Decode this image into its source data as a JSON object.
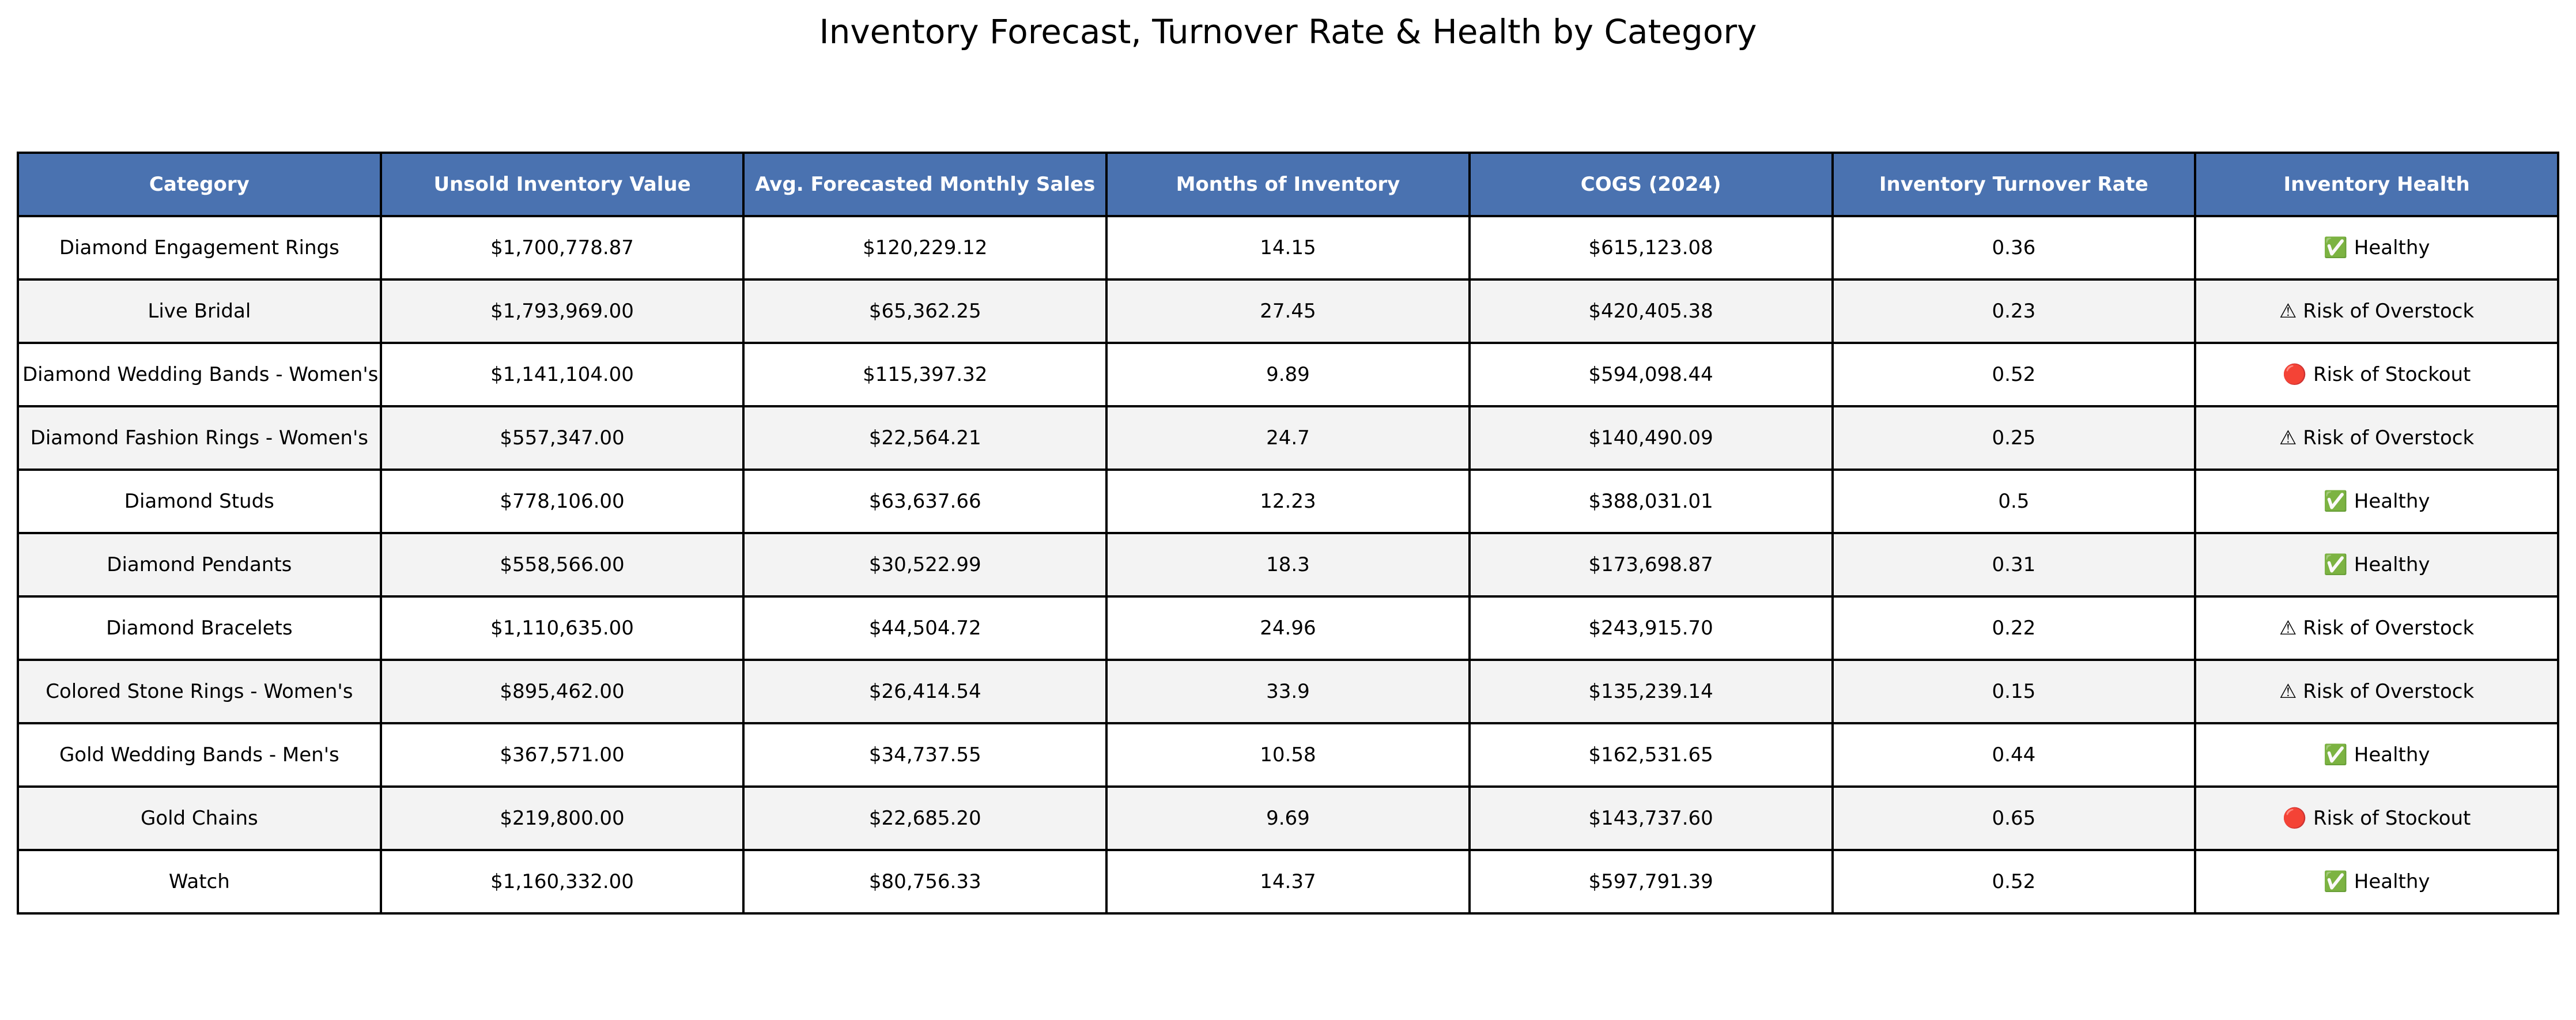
{
  "chart_data": {
    "type": "table",
    "title": "Inventory Forecast, Turnover Rate & Health by Category",
    "colors": {
      "header_bg": "#4a72b0",
      "header_text": "#ffffff",
      "row_alt_bg": "#f3f3f3",
      "row_bg": "#ffffff",
      "border": "#000000"
    },
    "columns": [
      "Category",
      "Unsold Inventory Value",
      "Avg. Forecasted Monthly Sales",
      "Months of Inventory",
      "COGS (2024)",
      "Inventory Turnover Rate",
      "Inventory Health"
    ],
    "rows": [
      [
        "Diamond Engagement Rings",
        "$1,700,778.87",
        "$120,229.12",
        "14.15",
        "$615,123.08",
        "0.36",
        "✅ Healthy"
      ],
      [
        "Live Bridal",
        "$1,793,969.00",
        "$65,362.25",
        "27.45",
        "$420,405.38",
        "0.23",
        "⚠ Risk of Overstock"
      ],
      [
        "Diamond Wedding Bands - Women's",
        "$1,141,104.00",
        "$115,397.32",
        "9.89",
        "$594,098.44",
        "0.52",
        "🔴 Risk of Stockout"
      ],
      [
        "Diamond Fashion Rings - Women's",
        "$557,347.00",
        "$22,564.21",
        "24.7",
        "$140,490.09",
        "0.25",
        "⚠ Risk of Overstock"
      ],
      [
        "Diamond Studs",
        "$778,106.00",
        "$63,637.66",
        "12.23",
        "$388,031.01",
        "0.5",
        "✅ Healthy"
      ],
      [
        "Diamond Pendants",
        "$558,566.00",
        "$30,522.99",
        "18.3",
        "$173,698.87",
        "0.31",
        "✅ Healthy"
      ],
      [
        "Diamond Bracelets",
        "$1,110,635.00",
        "$44,504.72",
        "24.96",
        "$243,915.70",
        "0.22",
        "⚠ Risk of Overstock"
      ],
      [
        "Colored Stone Rings - Women's",
        "$895,462.00",
        "$26,414.54",
        "33.9",
        "$135,239.14",
        "0.15",
        "⚠ Risk of Overstock"
      ],
      [
        "Gold Wedding Bands - Men's",
        "$367,571.00",
        "$34,737.55",
        "10.58",
        "$162,531.65",
        "0.44",
        "✅ Healthy"
      ],
      [
        "Gold Chains",
        "$219,800.00",
        "$22,685.20",
        "9.69",
        "$143,737.60",
        "0.65",
        "🔴 Risk of Stockout"
      ],
      [
        "Watch",
        "$1,160,332.00",
        "$80,756.33",
        "14.37",
        "$597,791.39",
        "0.52",
        "✅ Healthy"
      ]
    ]
  }
}
